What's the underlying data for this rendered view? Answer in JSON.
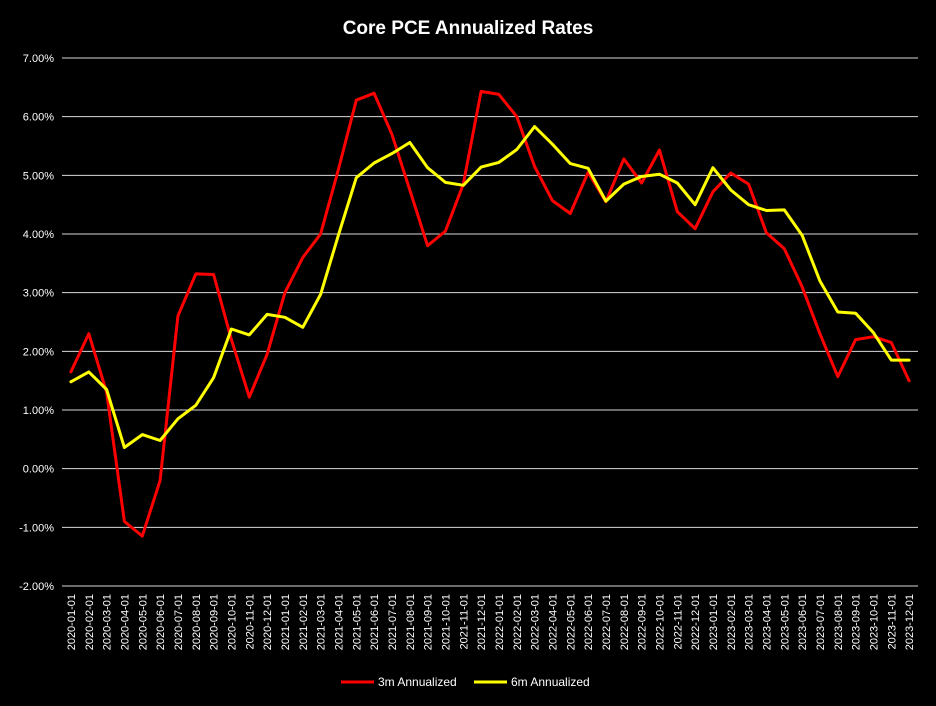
{
  "chart_data": {
    "type": "line",
    "title": "Core PCE Annualized Rates",
    "xlabel": "",
    "ylabel": "",
    "ylim": [
      -2,
      7
    ],
    "ytick_step": 1,
    "y_format": "percent_2dp",
    "grid": "horizontal",
    "legend_position": "bottom",
    "categories": [
      "2020-01-01",
      "2020-02-01",
      "2020-03-01",
      "2020-04-01",
      "2020-05-01",
      "2020-06-01",
      "2020-07-01",
      "2020-08-01",
      "2020-09-01",
      "2020-10-01",
      "2020-11-01",
      "2020-12-01",
      "2021-01-01",
      "2021-02-01",
      "2021-03-01",
      "2021-04-01",
      "2021-05-01",
      "2021-06-01",
      "2021-07-01",
      "2021-08-01",
      "2021-09-01",
      "2021-10-01",
      "2021-11-01",
      "2021-12-01",
      "2022-01-01",
      "2022-02-01",
      "2022-03-01",
      "2022-04-01",
      "2022-05-01",
      "2022-06-01",
      "2022-07-01",
      "2022-08-01",
      "2022-09-01",
      "2022-10-01",
      "2022-11-01",
      "2022-12-01",
      "2023-01-01",
      "2023-02-01",
      "2023-03-01",
      "2023-04-01",
      "2023-05-01",
      "2023-06-01",
      "2023-07-01",
      "2023-08-01",
      "2023-09-01",
      "2023-10-01",
      "2023-11-01",
      "2023-12-01"
    ],
    "series": [
      {
        "name": "3m Annualized",
        "color": "#ff0000",
        "values": [
          1.65,
          2.3,
          1.3,
          -0.9,
          -1.15,
          -0.2,
          2.6,
          3.32,
          3.31,
          2.2,
          1.22,
          1.95,
          3.0,
          3.6,
          4.0,
          5.1,
          6.28,
          6.4,
          5.7,
          4.75,
          3.8,
          4.05,
          4.85,
          6.43,
          6.38,
          6.0,
          5.15,
          4.57,
          4.35,
          5.05,
          4.55,
          5.28,
          4.87,
          5.43,
          4.38,
          4.09,
          4.72,
          5.04,
          4.85,
          4.02,
          3.75,
          3.1,
          2.3,
          1.57,
          2.2,
          2.25,
          2.15,
          1.5
        ]
      },
      {
        "name": "6m Annualized",
        "color": "#ffff00",
        "values": [
          1.48,
          1.65,
          1.35,
          0.36,
          0.58,
          0.48,
          0.85,
          1.08,
          1.55,
          2.38,
          2.28,
          2.63,
          2.58,
          2.41,
          2.97,
          3.98,
          4.96,
          5.21,
          5.37,
          5.56,
          5.13,
          4.88,
          4.83,
          5.14,
          5.22,
          5.44,
          5.83,
          5.53,
          5.2,
          5.12,
          4.56,
          4.85,
          4.98,
          5.02,
          4.87,
          4.5,
          5.13,
          4.75,
          4.5,
          4.4,
          4.41,
          3.98,
          3.2,
          2.67,
          2.65,
          2.32,
          1.85,
          1.85
        ]
      }
    ]
  }
}
